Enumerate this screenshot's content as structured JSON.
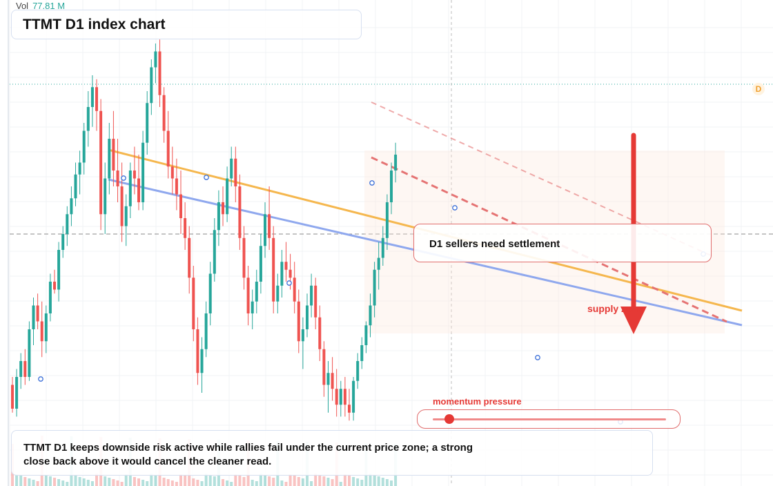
{
  "volume": {
    "label": "Vol",
    "value": "77.81 M"
  },
  "title": "TTMT D1 index chart",
  "callout": "D1 sellers need settlement",
  "zone_label": "supply zone",
  "momentum": {
    "label": "momentum pressure",
    "value": 0.07
  },
  "note": "TTMT D1 keeps downside risk active while rallies fail under the current price zone; a strong close back above it would cancel the cleaner read.",
  "badge": "D",
  "colors": {
    "up": "#26a69a",
    "down": "#ef5350",
    "trend_orange": "#f5b74e",
    "trend_blue": "#8fa8ee",
    "resistance": "#e57373",
    "arrow": "#e53935"
  },
  "chart_data": {
    "type": "candlestick",
    "title": "TTMT D1 index chart",
    "ylim": [
      0,
      100
    ],
    "candles": [
      {
        "o": 10,
        "h": 12,
        "l": 3,
        "c": 4
      },
      {
        "o": 4,
        "h": 14,
        "l": 2,
        "c": 12
      },
      {
        "o": 12,
        "h": 18,
        "l": 9,
        "c": 16
      },
      {
        "o": 16,
        "h": 19,
        "l": 10,
        "c": 12
      },
      {
        "o": 12,
        "h": 26,
        "l": 11,
        "c": 24
      },
      {
        "o": 24,
        "h": 32,
        "l": 20,
        "c": 30
      },
      {
        "o": 30,
        "h": 33,
        "l": 24,
        "c": 26
      },
      {
        "o": 26,
        "h": 31,
        "l": 17,
        "c": 21
      },
      {
        "o": 21,
        "h": 30,
        "l": 18,
        "c": 28
      },
      {
        "o": 28,
        "h": 38,
        "l": 26,
        "c": 36
      },
      {
        "o": 36,
        "h": 39,
        "l": 33,
        "c": 34
      },
      {
        "o": 34,
        "h": 46,
        "l": 31,
        "c": 44
      },
      {
        "o": 44,
        "h": 50,
        "l": 42,
        "c": 48
      },
      {
        "o": 48,
        "h": 55,
        "l": 45,
        "c": 53
      },
      {
        "o": 53,
        "h": 60,
        "l": 50,
        "c": 57
      },
      {
        "o": 57,
        "h": 66,
        "l": 55,
        "c": 63
      },
      {
        "o": 63,
        "h": 69,
        "l": 58,
        "c": 66
      },
      {
        "o": 66,
        "h": 76,
        "l": 63,
        "c": 74
      },
      {
        "o": 74,
        "h": 84,
        "l": 70,
        "c": 80
      },
      {
        "o": 80,
        "h": 88,
        "l": 75,
        "c": 85
      },
      {
        "o": 85,
        "h": 87,
        "l": 74,
        "c": 79
      },
      {
        "o": 79,
        "h": 82,
        "l": 49,
        "c": 53
      },
      {
        "o": 53,
        "h": 66,
        "l": 48,
        "c": 62
      },
      {
        "o": 62,
        "h": 76,
        "l": 58,
        "c": 72
      },
      {
        "o": 72,
        "h": 79,
        "l": 60,
        "c": 64
      },
      {
        "o": 64,
        "h": 72,
        "l": 56,
        "c": 60
      },
      {
        "o": 60,
        "h": 66,
        "l": 46,
        "c": 50
      },
      {
        "o": 50,
        "h": 58,
        "l": 45,
        "c": 55
      },
      {
        "o": 55,
        "h": 66,
        "l": 52,
        "c": 64
      },
      {
        "o": 64,
        "h": 70,
        "l": 58,
        "c": 62
      },
      {
        "o": 62,
        "h": 68,
        "l": 54,
        "c": 56
      },
      {
        "o": 56,
        "h": 74,
        "l": 54,
        "c": 71
      },
      {
        "o": 71,
        "h": 84,
        "l": 68,
        "c": 81
      },
      {
        "o": 81,
        "h": 92,
        "l": 78,
        "c": 90
      },
      {
        "o": 90,
        "h": 96,
        "l": 86,
        "c": 94
      },
      {
        "o": 94,
        "h": 97,
        "l": 80,
        "c": 83
      },
      {
        "o": 83,
        "h": 85,
        "l": 71,
        "c": 74
      },
      {
        "o": 74,
        "h": 79,
        "l": 62,
        "c": 65
      },
      {
        "o": 65,
        "h": 70,
        "l": 58,
        "c": 62
      },
      {
        "o": 62,
        "h": 67,
        "l": 54,
        "c": 58
      },
      {
        "o": 58,
        "h": 64,
        "l": 48,
        "c": 52
      },
      {
        "o": 52,
        "h": 56,
        "l": 44,
        "c": 47
      },
      {
        "o": 47,
        "h": 50,
        "l": 33,
        "c": 37
      },
      {
        "o": 37,
        "h": 40,
        "l": 21,
        "c": 24
      },
      {
        "o": 24,
        "h": 27,
        "l": 10,
        "c": 13
      },
      {
        "o": 13,
        "h": 22,
        "l": 8,
        "c": 19
      },
      {
        "o": 19,
        "h": 31,
        "l": 17,
        "c": 28
      },
      {
        "o": 28,
        "h": 41,
        "l": 25,
        "c": 38
      },
      {
        "o": 38,
        "h": 52,
        "l": 36,
        "c": 49
      },
      {
        "o": 49,
        "h": 59,
        "l": 45,
        "c": 56
      },
      {
        "o": 56,
        "h": 60,
        "l": 50,
        "c": 53
      },
      {
        "o": 53,
        "h": 65,
        "l": 51,
        "c": 62
      },
      {
        "o": 62,
        "h": 70,
        "l": 60,
        "c": 67
      },
      {
        "o": 67,
        "h": 70,
        "l": 56,
        "c": 60
      },
      {
        "o": 60,
        "h": 63,
        "l": 44,
        "c": 47
      },
      {
        "o": 47,
        "h": 50,
        "l": 34,
        "c": 37
      },
      {
        "o": 37,
        "h": 40,
        "l": 25,
        "c": 28
      },
      {
        "o": 28,
        "h": 34,
        "l": 24,
        "c": 31
      },
      {
        "o": 31,
        "h": 39,
        "l": 28,
        "c": 36
      },
      {
        "o": 36,
        "h": 48,
        "l": 33,
        "c": 45
      },
      {
        "o": 45,
        "h": 56,
        "l": 42,
        "c": 53
      },
      {
        "o": 53,
        "h": 60,
        "l": 44,
        "c": 47
      },
      {
        "o": 47,
        "h": 50,
        "l": 28,
        "c": 31
      },
      {
        "o": 31,
        "h": 38,
        "l": 28,
        "c": 35
      },
      {
        "o": 35,
        "h": 44,
        "l": 32,
        "c": 41
      },
      {
        "o": 41,
        "h": 46,
        "l": 36,
        "c": 39
      },
      {
        "o": 39,
        "h": 43,
        "l": 34,
        "c": 37
      },
      {
        "o": 37,
        "h": 41,
        "l": 28,
        "c": 31
      },
      {
        "o": 31,
        "h": 34,
        "l": 18,
        "c": 21
      },
      {
        "o": 21,
        "h": 27,
        "l": 14,
        "c": 24
      },
      {
        "o": 24,
        "h": 33,
        "l": 22,
        "c": 30
      },
      {
        "o": 30,
        "h": 38,
        "l": 27,
        "c": 35
      },
      {
        "o": 35,
        "h": 37,
        "l": 24,
        "c": 27
      },
      {
        "o": 27,
        "h": 30,
        "l": 16,
        "c": 19
      },
      {
        "o": 19,
        "h": 21,
        "l": 7,
        "c": 10
      },
      {
        "o": 10,
        "h": 16,
        "l": 3,
        "c": 13
      },
      {
        "o": 13,
        "h": 17,
        "l": 6,
        "c": 9
      },
      {
        "o": 9,
        "h": 14,
        "l": 2,
        "c": 5
      },
      {
        "o": 5,
        "h": 11,
        "l": 2,
        "c": 9
      },
      {
        "o": 9,
        "h": 12,
        "l": 2,
        "c": 5
      },
      {
        "o": 5,
        "h": 9,
        "l": 1,
        "c": 3
      },
      {
        "o": 3,
        "h": 12,
        "l": 1,
        "c": 11
      },
      {
        "o": 11,
        "h": 18,
        "l": 9,
        "c": 16
      },
      {
        "o": 16,
        "h": 22,
        "l": 14,
        "c": 20
      },
      {
        "o": 20,
        "h": 26,
        "l": 18,
        "c": 25
      },
      {
        "o": 25,
        "h": 33,
        "l": 22,
        "c": 30
      },
      {
        "o": 30,
        "h": 41,
        "l": 27,
        "c": 39
      },
      {
        "o": 39,
        "h": 46,
        "l": 34,
        "c": 42
      },
      {
        "o": 42,
        "h": 50,
        "l": 40,
        "c": 47
      },
      {
        "o": 47,
        "h": 58,
        "l": 44,
        "c": 56
      },
      {
        "o": 56,
        "h": 66,
        "l": 53,
        "c": 64
      },
      {
        "o": 64,
        "h": 71,
        "l": 61,
        "c": 68
      }
    ]
  }
}
